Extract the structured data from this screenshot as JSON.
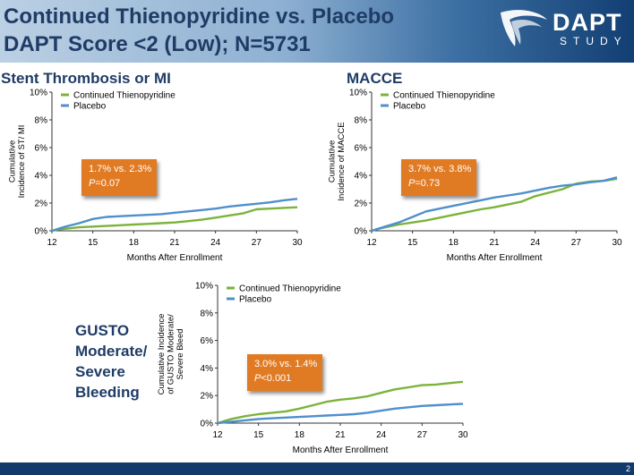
{
  "header": {
    "title_line1": "Continued Thienopyridine vs. Placebo",
    "title_line2": "DAPT Score <2 (Low); N=5731",
    "logo_main": "DAPT",
    "logo_sub": "STUDY"
  },
  "colors": {
    "thienopyridine": "#7bb33b",
    "placebo": "#4f8fcc",
    "box": "#e07b24",
    "title": "#1f3c66"
  },
  "footer": {
    "slide_number": "2"
  },
  "chart_data": [
    {
      "type": "line",
      "title": "Stent Thrombosis or MI",
      "xlabel": "Months After Enrollment",
      "ylabel": "Cumulative Incidence of ST/ MI",
      "xlim": [
        12,
        30
      ],
      "ylim": [
        0,
        10
      ],
      "xticks": [
        12,
        15,
        18,
        21,
        24,
        27,
        30
      ],
      "yticks": [
        0,
        2,
        4,
        6,
        8,
        10
      ],
      "ytick_labels": [
        "0%",
        "2%",
        "4%",
        "6%",
        "8%",
        "10%"
      ],
      "legend_position": "top-left",
      "annotation": {
        "line1": "1.7% vs. 2.3%",
        "line2_label": "P",
        "line2_value": "=0.07"
      },
      "series": [
        {
          "name": "Continued Thienopyridine",
          "color": "#7bb33b",
          "x": [
            12,
            12.5,
            13,
            14,
            15,
            16,
            17,
            18,
            19,
            20,
            21,
            22,
            23,
            24,
            25,
            26,
            27,
            28,
            29,
            30
          ],
          "y": [
            0,
            0.1,
            0.15,
            0.25,
            0.3,
            0.35,
            0.4,
            0.45,
            0.5,
            0.55,
            0.6,
            0.7,
            0.8,
            0.95,
            1.1,
            1.25,
            1.55,
            1.6,
            1.65,
            1.7
          ]
        },
        {
          "name": "Placebo",
          "color": "#4f8fcc",
          "x": [
            12,
            12.5,
            13,
            14,
            15,
            16,
            17,
            18,
            19,
            20,
            21,
            22,
            23,
            24,
            25,
            26,
            27,
            28,
            29,
            30
          ],
          "y": [
            0,
            0.15,
            0.3,
            0.55,
            0.85,
            1.0,
            1.05,
            1.1,
            1.15,
            1.2,
            1.3,
            1.4,
            1.5,
            1.6,
            1.75,
            1.85,
            1.95,
            2.05,
            2.2,
            2.3
          ]
        }
      ]
    },
    {
      "type": "line",
      "title": "MACCE",
      "xlabel": "Months After Enrollment",
      "ylabel": "Cumulative Incidence of MACCE",
      "xlim": [
        12,
        30
      ],
      "ylim": [
        0,
        10
      ],
      "xticks": [
        12,
        15,
        18,
        21,
        24,
        27,
        30
      ],
      "yticks": [
        0,
        2,
        4,
        6,
        8,
        10
      ],
      "ytick_labels": [
        "0%",
        "2%",
        "4%",
        "6%",
        "8%",
        "10%"
      ],
      "legend_position": "top-left",
      "annotation": {
        "line1": "3.7% vs. 3.8%",
        "line2_label": "P",
        "line2_value": "=0.73"
      },
      "series": [
        {
          "name": "Continued Thienopyridine",
          "color": "#7bb33b",
          "x": [
            12,
            12.5,
            13,
            14,
            15,
            16,
            17,
            18,
            19,
            20,
            21,
            22,
            23,
            24,
            25,
            26,
            27,
            28,
            29,
            30
          ],
          "y": [
            0,
            0.15,
            0.25,
            0.45,
            0.6,
            0.75,
            0.95,
            1.15,
            1.35,
            1.55,
            1.7,
            1.9,
            2.1,
            2.5,
            2.75,
            3.0,
            3.4,
            3.55,
            3.6,
            3.75
          ]
        },
        {
          "name": "Placebo",
          "color": "#4f8fcc",
          "x": [
            12,
            12.5,
            13,
            14,
            15,
            16,
            17,
            18,
            19,
            20,
            21,
            22,
            23,
            24,
            25,
            26,
            27,
            28,
            29,
            30
          ],
          "y": [
            0,
            0.15,
            0.3,
            0.6,
            1.0,
            1.4,
            1.6,
            1.8,
            2.0,
            2.2,
            2.4,
            2.55,
            2.7,
            2.9,
            3.1,
            3.25,
            3.35,
            3.5,
            3.6,
            3.85
          ]
        }
      ]
    },
    {
      "type": "line",
      "title": "GUSTO Moderate/ Severe Bleeding",
      "xlabel": "Months After Enrollment",
      "ylabel": "Cumulative Incidence of GUSTO Moderate/ Severe Bleed",
      "xlim": [
        12,
        30
      ],
      "ylim": [
        0,
        10
      ],
      "xticks": [
        12,
        15,
        18,
        21,
        24,
        27,
        30
      ],
      "yticks": [
        0,
        2,
        4,
        6,
        8,
        10
      ],
      "ytick_labels": [
        "0%",
        "2%",
        "4%",
        "6%",
        "8%",
        "10%"
      ],
      "legend_position": "top-left",
      "annotation": {
        "line1": "3.0% vs. 1.4%",
        "line2_label": "P",
        "line2_value": "<0.001"
      },
      "series": [
        {
          "name": "Continued Thienopyridine",
          "color": "#7bb33b",
          "x": [
            12,
            12.5,
            13,
            14,
            15,
            16,
            17,
            18,
            19,
            20,
            21,
            22,
            23,
            24,
            25,
            26,
            27,
            28,
            29,
            30
          ],
          "y": [
            0,
            0.15,
            0.3,
            0.5,
            0.65,
            0.75,
            0.85,
            1.05,
            1.3,
            1.55,
            1.7,
            1.8,
            1.95,
            2.2,
            2.45,
            2.6,
            2.75,
            2.8,
            2.9,
            3.0
          ]
        },
        {
          "name": "Placebo",
          "color": "#4f8fcc",
          "x": [
            12,
            12.5,
            13,
            14,
            15,
            16,
            17,
            18,
            19,
            20,
            21,
            22,
            23,
            24,
            25,
            26,
            27,
            28,
            29,
            30
          ],
          "y": [
            0,
            0.05,
            0.1,
            0.2,
            0.3,
            0.35,
            0.4,
            0.45,
            0.5,
            0.55,
            0.6,
            0.65,
            0.75,
            0.9,
            1.05,
            1.15,
            1.25,
            1.3,
            1.35,
            1.4
          ]
        }
      ]
    }
  ]
}
